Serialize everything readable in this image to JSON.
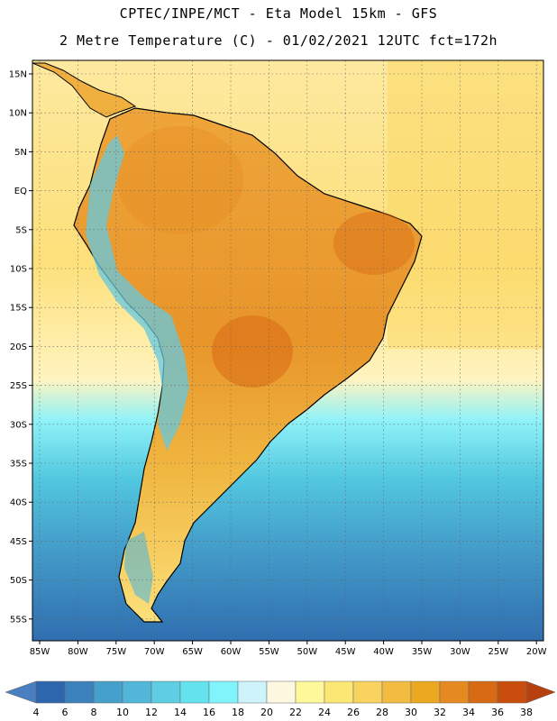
{
  "header": {
    "line1": "CPTEC/INPE/MCT -  Eta Model 15km - GFS",
    "line2": "2 Metre Temperature (C) - 01/02/2021 12UTC fct=172h"
  },
  "map": {
    "lat_labels": [
      "15N",
      "10N",
      "5N",
      "EQ",
      "5S",
      "10S",
      "15S",
      "20S",
      "25S",
      "30S",
      "35S",
      "40S",
      "45S",
      "50S",
      "55S"
    ],
    "lon_labels": [
      "85W",
      "80W",
      "75W",
      "70W",
      "65W",
      "60W",
      "55W",
      "50W",
      "45W",
      "40W",
      "35W",
      "30W",
      "25W",
      "20W"
    ]
  },
  "colorbar": {
    "ticks": [
      "4",
      "6",
      "8",
      "10",
      "12",
      "14",
      "16",
      "18",
      "20",
      "22",
      "24",
      "26",
      "28",
      "30",
      "32",
      "34",
      "36",
      "38"
    ],
    "low_color": "#4a7fbf",
    "high_color": "#b8400f",
    "colors": [
      "#2e66ad",
      "#3b82bd",
      "#46a0cc",
      "#52b6d8",
      "#5fcde3",
      "#64e3ef",
      "#7ff5fb",
      "#cdf4fb",
      "#fff8e0",
      "#fff89a",
      "#fde774",
      "#f8d35e",
      "#f2bc40",
      "#eda821",
      "#e48a20",
      "#d96a14",
      "#c94d0c"
    ]
  }
}
